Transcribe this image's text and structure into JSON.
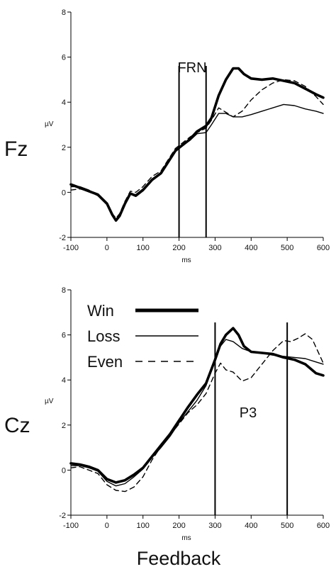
{
  "caption": "Feedback",
  "legend": [
    {
      "label": "Win",
      "style": "thick"
    },
    {
      "label": "Loss",
      "style": "thin"
    },
    {
      "label": "Even",
      "style": "dashed"
    }
  ],
  "chart_data": [
    {
      "type": "line",
      "channel": "Fz",
      "ylabel": "µV",
      "xlabel": "ms",
      "xlim": [
        -100,
        600
      ],
      "ylim": [
        -2,
        8
      ],
      "xticks": [
        -100,
        0,
        100,
        200,
        300,
        400,
        500,
        600
      ],
      "yticks": [
        -2,
        0,
        2,
        4,
        6,
        8
      ],
      "component_label": "FRN",
      "markers_ms": [
        200,
        275
      ],
      "series": [
        {
          "name": "Win",
          "style": "thick",
          "points": [
            [
              -100,
              0.35
            ],
            [
              -75,
              0.2
            ],
            [
              -50,
              0.05
            ],
            [
              -25,
              -0.1
            ],
            [
              0,
              -0.5
            ],
            [
              15,
              -1.0
            ],
            [
              25,
              -1.25
            ],
            [
              35,
              -1.05
            ],
            [
              50,
              -0.5
            ],
            [
              65,
              -0.05
            ],
            [
              80,
              -0.15
            ],
            [
              100,
              0.1
            ],
            [
              125,
              0.55
            ],
            [
              150,
              0.85
            ],
            [
              170,
              1.35
            ],
            [
              190,
              1.85
            ],
            [
              210,
              2.1
            ],
            [
              230,
              2.35
            ],
            [
              250,
              2.7
            ],
            [
              275,
              2.95
            ],
            [
              290,
              3.3
            ],
            [
              310,
              4.3
            ],
            [
              330,
              5.0
            ],
            [
              350,
              5.5
            ],
            [
              365,
              5.5
            ],
            [
              380,
              5.25
            ],
            [
              400,
              5.05
            ],
            [
              430,
              5.0
            ],
            [
              460,
              5.05
            ],
            [
              490,
              4.95
            ],
            [
              520,
              4.85
            ],
            [
              550,
              4.6
            ],
            [
              580,
              4.35
            ],
            [
              600,
              4.2
            ]
          ]
        },
        {
          "name": "Loss",
          "style": "thin",
          "points": [
            [
              -100,
              0.25
            ],
            [
              -75,
              0.25
            ],
            [
              -50,
              0.1
            ],
            [
              -25,
              -0.15
            ],
            [
              0,
              -0.55
            ],
            [
              15,
              -1.0
            ],
            [
              25,
              -1.2
            ],
            [
              35,
              -1.0
            ],
            [
              50,
              -0.45
            ],
            [
              65,
              -0.05
            ],
            [
              80,
              -0.1
            ],
            [
              100,
              0.15
            ],
            [
              125,
              0.6
            ],
            [
              150,
              0.85
            ],
            [
              170,
              1.3
            ],
            [
              190,
              1.8
            ],
            [
              210,
              2.1
            ],
            [
              230,
              2.3
            ],
            [
              250,
              2.6
            ],
            [
              275,
              2.65
            ],
            [
              290,
              3.0
            ],
            [
              310,
              3.5
            ],
            [
              330,
              3.5
            ],
            [
              350,
              3.35
            ],
            [
              375,
              3.35
            ],
            [
              400,
              3.45
            ],
            [
              430,
              3.6
            ],
            [
              460,
              3.75
            ],
            [
              490,
              3.9
            ],
            [
              520,
              3.85
            ],
            [
              550,
              3.7
            ],
            [
              580,
              3.6
            ],
            [
              600,
              3.5
            ]
          ]
        },
        {
          "name": "Even",
          "style": "dashed",
          "points": [
            [
              -100,
              0.1
            ],
            [
              -75,
              0.15
            ],
            [
              -50,
              0.05
            ],
            [
              -25,
              -0.15
            ],
            [
              0,
              -0.5
            ],
            [
              15,
              -0.95
            ],
            [
              25,
              -1.15
            ],
            [
              35,
              -0.95
            ],
            [
              50,
              -0.4
            ],
            [
              65,
              0.05
            ],
            [
              80,
              0.0
            ],
            [
              100,
              0.25
            ],
            [
              125,
              0.7
            ],
            [
              150,
              0.95
            ],
            [
              170,
              1.45
            ],
            [
              190,
              1.95
            ],
            [
              210,
              2.2
            ],
            [
              230,
              2.45
            ],
            [
              250,
              2.65
            ],
            [
              275,
              2.85
            ],
            [
              290,
              3.2
            ],
            [
              310,
              3.75
            ],
            [
              330,
              3.55
            ],
            [
              350,
              3.35
            ],
            [
              375,
              3.6
            ],
            [
              400,
              4.1
            ],
            [
              430,
              4.55
            ],
            [
              460,
              4.85
            ],
            [
              490,
              5.0
            ],
            [
              520,
              4.95
            ],
            [
              550,
              4.7
            ],
            [
              580,
              4.25
            ],
            [
              600,
              3.9
            ]
          ]
        }
      ]
    },
    {
      "type": "line",
      "channel": "Cz",
      "ylabel": "µV",
      "xlabel": "ms",
      "xlim": [
        -100,
        600
      ],
      "ylim": [
        -2,
        8
      ],
      "xticks": [
        -100,
        0,
        100,
        200,
        300,
        400,
        500,
        600
      ],
      "yticks": [
        -2,
        0,
        2,
        4,
        6,
        8
      ],
      "component_label": "P3",
      "markers_ms": [
        300,
        500
      ],
      "series": [
        {
          "name": "Win",
          "style": "thick",
          "points": [
            [
              -100,
              0.3
            ],
            [
              -75,
              0.25
            ],
            [
              -50,
              0.15
            ],
            [
              -25,
              0.0
            ],
            [
              0,
              -0.4
            ],
            [
              25,
              -0.55
            ],
            [
              50,
              -0.45
            ],
            [
              75,
              -0.2
            ],
            [
              100,
              0.1
            ],
            [
              125,
              0.6
            ],
            [
              150,
              1.1
            ],
            [
              175,
              1.6
            ],
            [
              200,
              2.2
            ],
            [
              225,
              2.8
            ],
            [
              250,
              3.35
            ],
            [
              275,
              3.85
            ],
            [
              300,
              4.9
            ],
            [
              315,
              5.6
            ],
            [
              330,
              6.0
            ],
            [
              350,
              6.3
            ],
            [
              365,
              6.0
            ],
            [
              380,
              5.5
            ],
            [
              400,
              5.25
            ],
            [
              430,
              5.2
            ],
            [
              460,
              5.15
            ],
            [
              490,
              5.0
            ],
            [
              520,
              4.9
            ],
            [
              550,
              4.7
            ],
            [
              580,
              4.3
            ],
            [
              600,
              4.2
            ]
          ]
        },
        {
          "name": "Loss",
          "style": "thin",
          "points": [
            [
              -100,
              0.2
            ],
            [
              -75,
              0.2
            ],
            [
              -50,
              0.1
            ],
            [
              -25,
              -0.05
            ],
            [
              0,
              -0.5
            ],
            [
              25,
              -0.7
            ],
            [
              50,
              -0.6
            ],
            [
              75,
              -0.3
            ],
            [
              100,
              0.05
            ],
            [
              125,
              0.55
            ],
            [
              150,
              1.0
            ],
            [
              175,
              1.5
            ],
            [
              200,
              2.1
            ],
            [
              225,
              2.6
            ],
            [
              250,
              3.1
            ],
            [
              275,
              3.75
            ],
            [
              300,
              4.95
            ],
            [
              315,
              5.5
            ],
            [
              330,
              5.8
            ],
            [
              350,
              5.7
            ],
            [
              375,
              5.4
            ],
            [
              400,
              5.25
            ],
            [
              430,
              5.2
            ],
            [
              460,
              5.1
            ],
            [
              490,
              5.05
            ],
            [
              520,
              5.0
            ],
            [
              550,
              4.95
            ],
            [
              580,
              4.8
            ],
            [
              600,
              4.7
            ]
          ]
        },
        {
          "name": "Even",
          "style": "dashed",
          "points": [
            [
              -100,
              0.1
            ],
            [
              -75,
              0.15
            ],
            [
              -50,
              0.0
            ],
            [
              -25,
              -0.15
            ],
            [
              0,
              -0.65
            ],
            [
              25,
              -0.9
            ],
            [
              50,
              -0.95
            ],
            [
              75,
              -0.75
            ],
            [
              100,
              -0.3
            ],
            [
              125,
              0.45
            ],
            [
              150,
              1.05
            ],
            [
              175,
              1.55
            ],
            [
              200,
              2.05
            ],
            [
              225,
              2.55
            ],
            [
              250,
              2.9
            ],
            [
              275,
              3.4
            ],
            [
              300,
              4.3
            ],
            [
              315,
              4.75
            ],
            [
              330,
              4.45
            ],
            [
              350,
              4.35
            ],
            [
              375,
              3.95
            ],
            [
              400,
              4.1
            ],
            [
              430,
              4.7
            ],
            [
              460,
              5.3
            ],
            [
              490,
              5.75
            ],
            [
              510,
              5.7
            ],
            [
              530,
              5.85
            ],
            [
              550,
              6.05
            ],
            [
              570,
              5.8
            ],
            [
              590,
              5.1
            ],
            [
              600,
              4.75
            ]
          ]
        }
      ]
    }
  ]
}
